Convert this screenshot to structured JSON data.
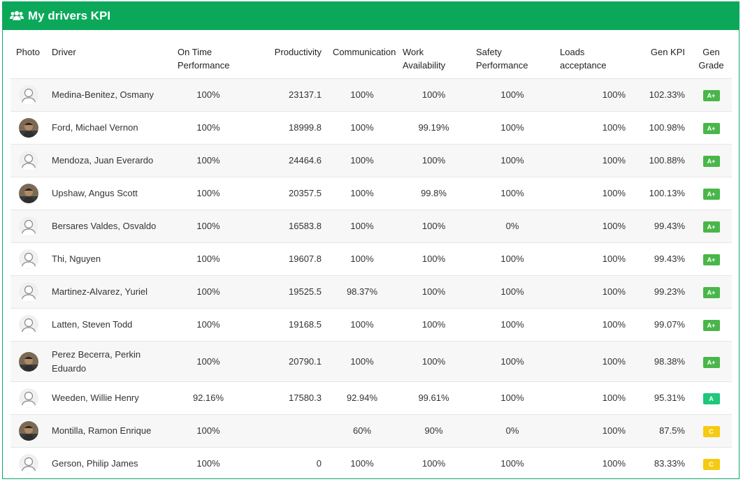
{
  "header": {
    "title": "My drivers KPI",
    "icon": "users-icon"
  },
  "columns": {
    "photo": "Photo",
    "driver": "Driver",
    "on_time": [
      "On Time",
      "Performance"
    ],
    "productivity": "Productivity",
    "communication": "Communication",
    "work": [
      "Work",
      "Availability"
    ],
    "safety": [
      "Safety",
      "Performance"
    ],
    "loads": [
      "Loads",
      "acceptance"
    ],
    "gen_kpi": "Gen KPI",
    "gen_grade": [
      "Gen",
      "Grade"
    ]
  },
  "colors": {
    "header": "#0ca85a",
    "grade_a_plus": "#49b649",
    "grade_a": "#1ec77a",
    "grade_c": "#f5cb12"
  },
  "rows": [
    {
      "photo": "default",
      "driver": "Medina-Benitez, Osmany",
      "on_time": "100%",
      "productivity": "23137.1",
      "communication": "100%",
      "work": "100%",
      "safety": "100%",
      "loads": "100%",
      "gen_kpi": "102.33%",
      "grade": "A+"
    },
    {
      "photo": "photo",
      "driver": "Ford, Michael Vernon",
      "on_time": "100%",
      "productivity": "18999.8",
      "communication": "100%",
      "work": "99.19%",
      "safety": "100%",
      "loads": "100%",
      "gen_kpi": "100.98%",
      "grade": "A+"
    },
    {
      "photo": "default",
      "driver": "Mendoza, Juan Everardo",
      "on_time": "100%",
      "productivity": "24464.6",
      "communication": "100%",
      "work": "100%",
      "safety": "100%",
      "loads": "100%",
      "gen_kpi": "100.88%",
      "grade": "A+"
    },
    {
      "photo": "photo",
      "driver": "Upshaw, Angus Scott",
      "on_time": "100%",
      "productivity": "20357.5",
      "communication": "100%",
      "work": "99.8%",
      "safety": "100%",
      "loads": "100%",
      "gen_kpi": "100.13%",
      "grade": "A+"
    },
    {
      "photo": "default",
      "driver": "Bersares Valdes, Osvaldo",
      "on_time": "100%",
      "productivity": "16583.8",
      "communication": "100%",
      "work": "100%",
      "safety": "0%",
      "loads": "100%",
      "gen_kpi": "99.43%",
      "grade": "A+"
    },
    {
      "photo": "default",
      "driver": "Thi, Nguyen",
      "on_time": "100%",
      "productivity": "19607.8",
      "communication": "100%",
      "work": "100%",
      "safety": "100%",
      "loads": "100%",
      "gen_kpi": "99.43%",
      "grade": "A+"
    },
    {
      "photo": "default",
      "driver": "Martinez-Alvarez, Yuriel",
      "on_time": "100%",
      "productivity": "19525.5",
      "communication": "98.37%",
      "work": "100%",
      "safety": "100%",
      "loads": "100%",
      "gen_kpi": "99.23%",
      "grade": "A+"
    },
    {
      "photo": "default",
      "driver": "Latten, Steven Todd",
      "on_time": "100%",
      "productivity": "19168.5",
      "communication": "100%",
      "work": "100%",
      "safety": "100%",
      "loads": "100%",
      "gen_kpi": "99.07%",
      "grade": "A+"
    },
    {
      "photo": "photo",
      "driver": "Perez Becerra, Perkin Eduardo",
      "on_time": "100%",
      "productivity": "20790.1",
      "communication": "100%",
      "work": "100%",
      "safety": "100%",
      "loads": "100%",
      "gen_kpi": "98.38%",
      "grade": "A+"
    },
    {
      "photo": "default",
      "driver": "Weeden, Willie Henry",
      "on_time": "92.16%",
      "productivity": "17580.3",
      "communication": "92.94%",
      "work": "99.61%",
      "safety": "100%",
      "loads": "100%",
      "gen_kpi": "95.31%",
      "grade": "A"
    },
    {
      "photo": "photo",
      "driver": "Montilla, Ramon Enrique",
      "on_time": "100%",
      "productivity": "",
      "communication": "60%",
      "work": "90%",
      "safety": "0%",
      "loads": "100%",
      "gen_kpi": "87.5%",
      "grade": "C"
    },
    {
      "photo": "default",
      "driver": "Gerson, Philip James",
      "on_time": "100%",
      "productivity": "0",
      "communication": "100%",
      "work": "100%",
      "safety": "100%",
      "loads": "100%",
      "gen_kpi": "83.33%",
      "grade": "C"
    }
  ]
}
